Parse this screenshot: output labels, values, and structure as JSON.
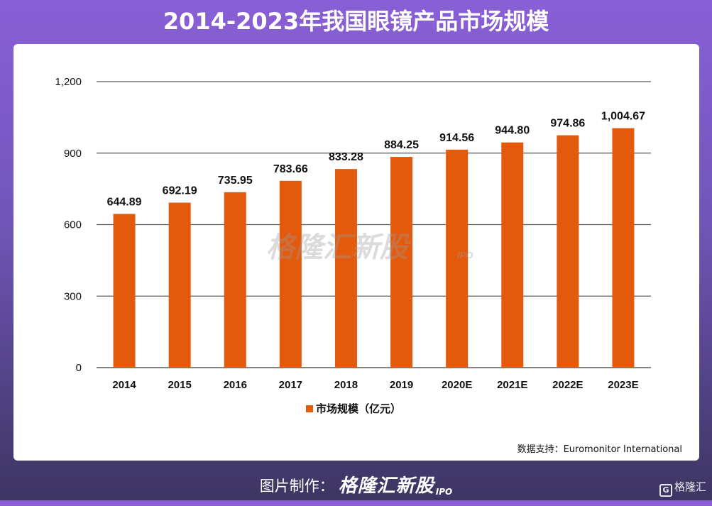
{
  "title": "2014-2023年我国眼镜产品市场规模",
  "source": "数据支持：Euromonitor International",
  "watermark": "格隆汇新股",
  "watermark_sub": "IPO",
  "footer": {
    "credit_label": "图片制作：",
    "brand": "格隆汇新股",
    "brand_sub": "IPO"
  },
  "badge": {
    "icon": "G",
    "text": "格隆汇"
  },
  "colors": {
    "bar": "#e45a0c",
    "gridline": "#5a5a5a"
  },
  "chart_data": {
    "type": "bar",
    "title": "2014-2023年我国眼镜产品市场规模",
    "categories": [
      "2014",
      "2015",
      "2016",
      "2017",
      "2018",
      "2019",
      "2020E",
      "2021E",
      "2022E",
      "2023E"
    ],
    "series": [
      {
        "name": "市场规模（亿元）",
        "values": [
          644.89,
          692.19,
          735.95,
          783.66,
          833.28,
          884.25,
          914.56,
          944.8,
          974.86,
          1004.67
        ],
        "labels": [
          "644.89",
          "692.19",
          "735.95",
          "783.66",
          "833.28",
          "884.25",
          "914.56",
          "944.80",
          "974.86",
          "1,004.67"
        ]
      }
    ],
    "yticks": [
      0,
      300,
      600,
      900,
      1200
    ],
    "ytick_labels": [
      "0",
      "300",
      "600",
      "900",
      "1,200"
    ],
    "ylim": [
      0,
      1200
    ],
    "xlabel": "",
    "ylabel": "",
    "grid": true,
    "legend": "bottom-center"
  }
}
